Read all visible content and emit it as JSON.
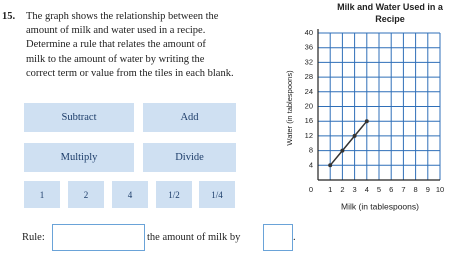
{
  "question": {
    "number": "15.",
    "lines": [
      "The graph shows the relationship between the",
      "amount of milk and water used in a recipe.",
      "Determine a rule that relates the amount of",
      "milk to the amount of water by writing the",
      "correct term or value from the tiles in each blank."
    ]
  },
  "tiles": {
    "operations": [
      "Subtract",
      "Add",
      "Multiply",
      "Divide"
    ],
    "numbers": [
      "1",
      "2",
      "4",
      "1/2",
      "1/4"
    ]
  },
  "rule": {
    "label": "Rule:",
    "middle": "the amount of milk by",
    "end": "."
  },
  "chart_data": {
    "type": "line",
    "title": "Milk and Water Used in a Recipe",
    "x_label": "Milk (in tablespoons)",
    "y_label": "Water (in tablespoons)",
    "x": [
      1,
      2,
      3,
      4
    ],
    "values": [
      4,
      8,
      12,
      16
    ],
    "color": "#333333",
    "grid_color": "#2f6fb8",
    "xlim": [
      0,
      10
    ],
    "xticks": [
      0,
      1,
      2,
      3,
      4,
      5,
      6,
      7,
      8,
      9,
      10
    ],
    "ylim": [
      0,
      40
    ],
    "yticks": [
      4,
      8,
      12,
      16,
      20,
      24,
      28,
      32,
      36,
      40
    ],
    "grid": true
  }
}
